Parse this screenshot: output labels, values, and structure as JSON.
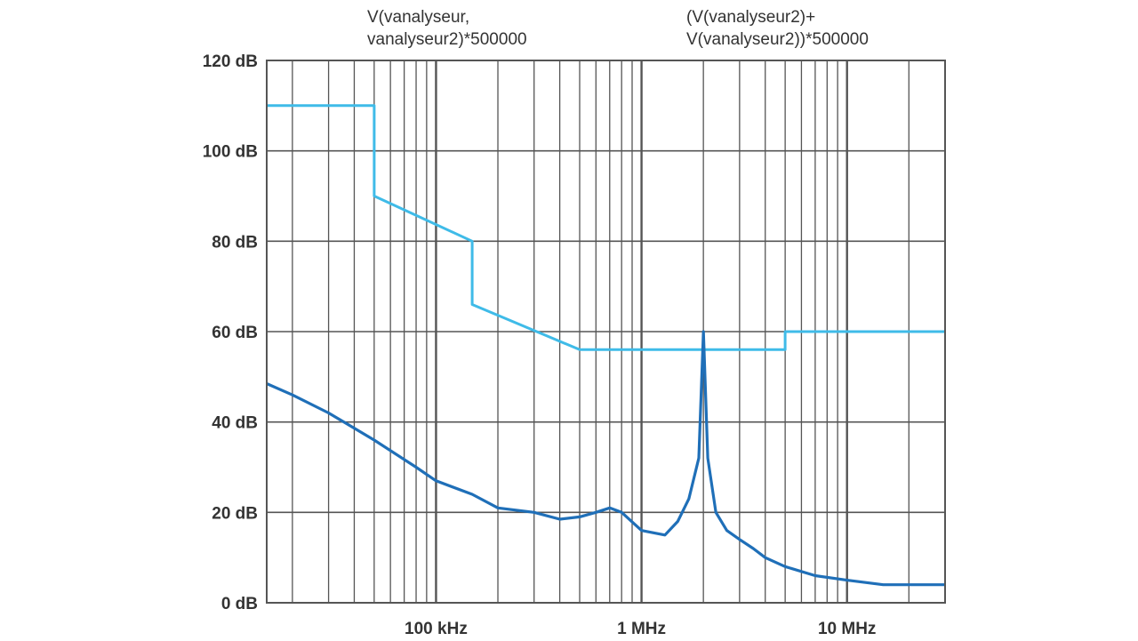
{
  "chart_data": {
    "type": "line",
    "title": "",
    "xlabel": "",
    "ylabel": "",
    "x_scale": "log",
    "xlim": [
      15000,
      30000000
    ],
    "ylim": [
      0,
      120
    ],
    "grid": true,
    "x_ticks": [
      {
        "value": 100000,
        "label": "100 kHz"
      },
      {
        "value": 1000000,
        "label": "1 MHz"
      },
      {
        "value": 10000000,
        "label": "10 MHz"
      }
    ],
    "y_ticks": [
      {
        "value": 0,
        "label": "0 dB"
      },
      {
        "value": 20,
        "label": "20 dB"
      },
      {
        "value": 40,
        "label": "40 dB"
      },
      {
        "value": 60,
        "label": "60 dB"
      },
      {
        "value": 80,
        "label": "80 dB"
      },
      {
        "value": 100,
        "label": "100 dB"
      },
      {
        "value": 120,
        "label": "120 dB"
      }
    ],
    "annotations": [
      {
        "lines": [
          "V(vanalyseur,",
          "vanalyseur2)*500000"
        ]
      },
      {
        "lines": [
          "(V(vanalyseur2)+",
          "V(vanalyseur2))*500000"
        ]
      }
    ],
    "series": [
      {
        "color": "#3fbbe8",
        "x": [
          15000,
          50000,
          50000,
          150000,
          150000,
          500000,
          5000000,
          5000000,
          30000000
        ],
        "y": [
          110,
          110,
          90,
          80,
          66,
          56,
          56,
          60,
          60
        ]
      },
      {
        "color": "#1f6fb8",
        "x": [
          15000,
          20000,
          30000,
          50000,
          80000,
          100000,
          150000,
          200000,
          300000,
          400000,
          500000,
          600000,
          700000,
          800000,
          1000000,
          1300000,
          1500000,
          1700000,
          1900000,
          2000000,
          2100000,
          2300000,
          2600000,
          3000000,
          3500000,
          4000000,
          5000000,
          7000000,
          10000000,
          15000000,
          20000000,
          30000000
        ],
        "y": [
          48.5,
          46,
          42,
          36,
          30,
          27,
          24,
          21,
          20,
          18.5,
          19,
          20,
          21,
          20,
          16,
          15,
          18,
          23,
          32,
          60,
          32,
          20,
          16,
          14,
          12,
          10,
          8,
          6,
          5,
          4,
          4,
          4
        ]
      }
    ]
  }
}
